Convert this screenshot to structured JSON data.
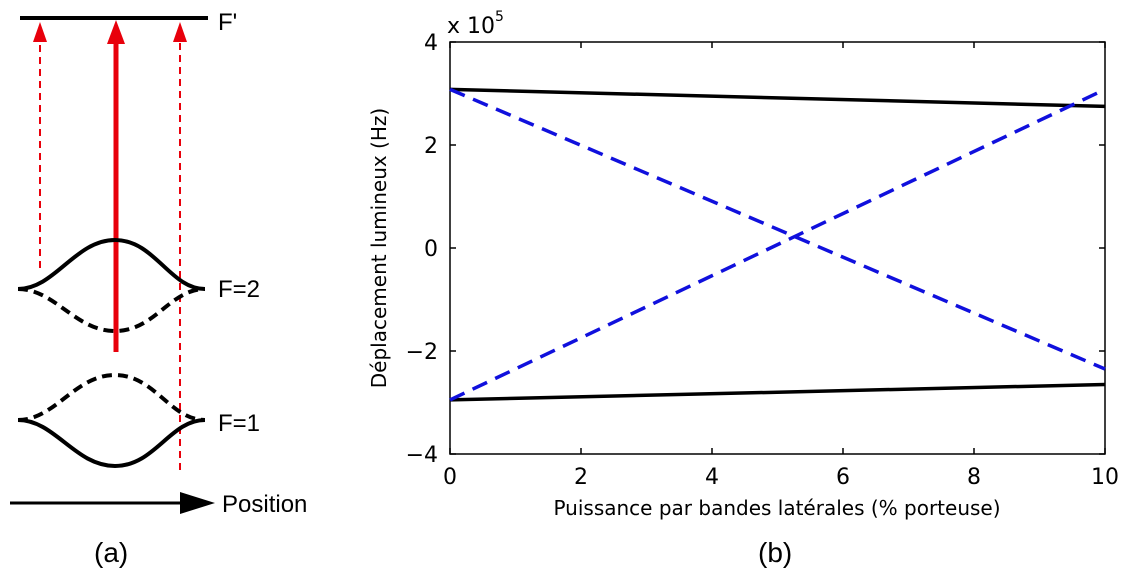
{
  "panel_a": {
    "caption": "(a)",
    "level_top": "F'",
    "level_f2": "F=2",
    "level_f1": "F=1",
    "position_label": "Position",
    "colors": {
      "beam": "#e8000b",
      "curve": "#000000"
    }
  },
  "panel_b": {
    "caption": "(b)"
  },
  "chart_data": {
    "type": "line",
    "title": "",
    "xlabel": "Puissance par bandes latérales (% porteuse)",
    "ylabel": "Déplacement lumineux (Hz)",
    "y_multiplier_label": "x 10",
    "y_multiplier_exp": "5",
    "xlim": [
      0,
      10
    ],
    "ylim": [
      -4,
      4
    ],
    "x_ticks": [
      "0",
      "2",
      "4",
      "6",
      "8",
      "10"
    ],
    "y_ticks": [
      "4",
      "2",
      "0",
      "−2",
      "−4"
    ],
    "x_tick_values": [
      0,
      2,
      4,
      6,
      8,
      10
    ],
    "y_tick_values": [
      4,
      2,
      0,
      -2,
      -4
    ],
    "grid": false,
    "series": [
      {
        "style": "solid",
        "color": "#000000",
        "x": [
          0,
          10
        ],
        "y": [
          3.08,
          2.75
        ]
      },
      {
        "style": "solid",
        "color": "#000000",
        "x": [
          0,
          10
        ],
        "y": [
          -2.95,
          -2.65
        ]
      },
      {
        "style": "dashed",
        "color": "#1010dd",
        "x": [
          0,
          10
        ],
        "y": [
          3.08,
          -2.35
        ]
      },
      {
        "style": "dashed",
        "color": "#1010dd",
        "x": [
          0,
          10
        ],
        "y": [
          -2.95,
          3.08
        ]
      }
    ]
  }
}
